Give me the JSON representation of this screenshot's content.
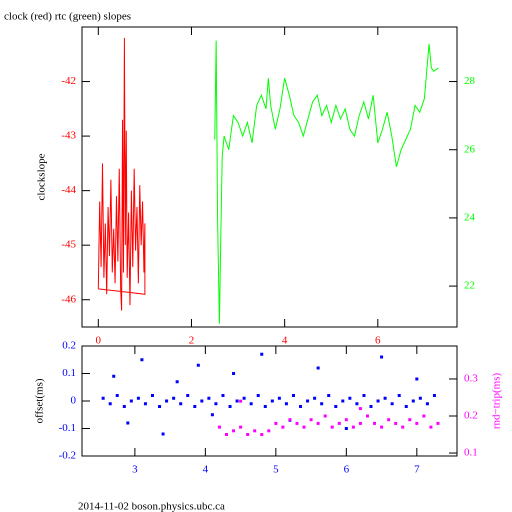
{
  "chart_data": [
    {
      "type": "line",
      "title": "clock (red) rtc (green) slopes",
      "ylabel": "clockslope",
      "xlim": [
        -0.35,
        7.7
      ],
      "xticks": [
        0,
        2,
        4,
        6
      ],
      "ylim": [
        -46.5,
        -41
      ],
      "yticks": [
        -46,
        -45,
        -44,
        -43,
        -42
      ],
      "y2lim": [
        20.8,
        29.6
      ],
      "y2ticks": [
        22,
        24,
        26,
        28
      ],
      "series": [
        {
          "name": "clock",
          "color": "#ff0000",
          "axis": "y",
          "x": [
            0,
            0.03,
            0.06,
            0.09,
            0.12,
            0.15,
            0.18,
            0.21,
            0.24,
            0.27,
            0.3,
            0.33,
            0.36,
            0.39,
            0.42,
            0.45,
            0.48,
            0.5,
            0.52,
            0.54,
            0.56,
            0.58,
            0.6,
            0.62,
            0.65,
            0.68,
            0.71,
            0.74,
            0.77,
            0.8,
            0.83,
            0.86,
            0.89,
            0.92,
            0.95,
            0.98,
            1.0,
            1.0,
            0
          ],
          "values": [
            -45.8,
            -44.2,
            -45.4,
            -43.5,
            -45.6,
            -44.6,
            -45.9,
            -44.3,
            -45.2,
            -43.8,
            -45.5,
            -44.7,
            -45.7,
            -44.1,
            -45.3,
            -43.6,
            -45.8,
            -46.2,
            -42.7,
            -45.5,
            -41.2,
            -45.0,
            -42.9,
            -45.6,
            -44.4,
            -46.1,
            -44.0,
            -45.4,
            -43.6,
            -45.1,
            -44.3,
            -45.7,
            -43.9,
            -45.0,
            -44.2,
            -45.5,
            -44.6,
            -45.9,
            -45.8
          ]
        },
        {
          "name": "rtc",
          "color": "#00ff00",
          "axis": "y2",
          "x": [
            2.5,
            2.53,
            2.56,
            2.6,
            2.63,
            2.66,
            2.7,
            2.8,
            2.9,
            3.0,
            3.1,
            3.2,
            3.3,
            3.4,
            3.5,
            3.6,
            3.65,
            3.7,
            3.8,
            3.9,
            4.0,
            4.1,
            4.2,
            4.3,
            4.4,
            4.5,
            4.6,
            4.7,
            4.8,
            4.9,
            5.0,
            5.1,
            5.2,
            5.3,
            5.4,
            5.5,
            5.6,
            5.7,
            5.8,
            5.9,
            6.0,
            6.1,
            6.2,
            6.3,
            6.4,
            6.5,
            6.6,
            6.7,
            6.8,
            6.9,
            7.0,
            7.1,
            7.15,
            7.2,
            7.3
          ],
          "values": [
            26.3,
            29.2,
            24,
            20.9,
            23.5,
            25.8,
            26.4,
            26.0,
            27.0,
            26.8,
            26.4,
            26.8,
            26.2,
            27.3,
            27.6,
            27.2,
            28.1,
            27.3,
            26.6,
            27.2,
            28.1,
            27.6,
            27.0,
            26.8,
            26.4,
            26.9,
            27.4,
            27.6,
            27.0,
            27.3,
            26.8,
            27.3,
            26.9,
            27.2,
            26.6,
            26.4,
            27.0,
            27.4,
            26.9,
            27.6,
            26.2,
            26.6,
            27.1,
            26.4,
            25.5,
            26.0,
            26.3,
            26.6,
            27.3,
            27.1,
            27.5,
            29.1,
            28.4,
            28.3,
            28.4
          ]
        }
      ]
    },
    {
      "type": "scatter",
      "ylabel": "offset(ms)",
      "y2label": "rnd−trip(ms)",
      "footer": "2014-11-02 boson.physics.ubc.ca",
      "xlim": [
        2.25,
        7.57
      ],
      "xticks": [
        3,
        4,
        5,
        6,
        7
      ],
      "ylim": [
        -0.2,
        0.2
      ],
      "yticks": [
        -0.2,
        -0.1,
        0,
        0.1,
        0.2
      ],
      "y2lim": [
        0.092,
        0.389
      ],
      "y2ticks": [
        0.1,
        0.2,
        0.3
      ],
      "series": [
        {
          "name": "offset",
          "color": "#0000ff",
          "axis": "y",
          "x": [
            2.55,
            2.65,
            2.75,
            2.85,
            2.95,
            3.05,
            3.15,
            3.25,
            3.35,
            3.45,
            3.55,
            3.65,
            3.75,
            3.85,
            3.95,
            4.05,
            4.15,
            4.25,
            4.35,
            4.45,
            4.55,
            4.65,
            4.75,
            4.85,
            4.95,
            5.05,
            5.15,
            5.25,
            5.35,
            5.45,
            5.55,
            5.65,
            5.75,
            5.85,
            5.95,
            6.05,
            6.15,
            6.25,
            6.35,
            6.45,
            6.55,
            6.65,
            6.75,
            6.85,
            6.95,
            7.05,
            7.15,
            7.25,
            2.7,
            2.9,
            3.1,
            3.4,
            3.6,
            3.9,
            4.1,
            4.4,
            4.8,
            5.2,
            5.6,
            6.0,
            6.5,
            7.0
          ],
          "values": [
            0.01,
            -0.01,
            0.02,
            -0.02,
            0,
            0.01,
            -0.01,
            0.02,
            -0.02,
            0,
            0.01,
            -0.01,
            0.02,
            -0.02,
            0,
            0.01,
            -0.01,
            0.02,
            -0.02,
            0,
            0.01,
            -0.01,
            0.02,
            -0.02,
            0,
            0.01,
            -0.01,
            0.02,
            -0.02,
            0,
            0.01,
            -0.01,
            0.02,
            -0.02,
            0,
            0.01,
            -0.01,
            0.02,
            -0.02,
            0,
            0.01,
            -0.01,
            0.02,
            -0.02,
            0,
            0.01,
            -0.01,
            0.02,
            0.09,
            -0.08,
            0.15,
            -0.12,
            0.07,
            0.13,
            -0.05,
            0.1,
            0.17,
            -0.07,
            0.12,
            -0.1,
            0.16,
            0.08
          ]
        },
        {
          "name": "rnd-trip",
          "color": "#ff00ff",
          "axis": "y2",
          "x": [
            4.2,
            4.3,
            4.4,
            4.5,
            4.6,
            4.7,
            4.8,
            4.9,
            5.0,
            5.1,
            5.2,
            5.3,
            5.4,
            5.5,
            5.6,
            5.7,
            5.8,
            5.9,
            6.0,
            6.1,
            6.2,
            6.3,
            6.4,
            6.5,
            6.6,
            6.7,
            6.8,
            6.9,
            7.0,
            7.1,
            7.2,
            7.3,
            4.5,
            6.2
          ],
          "values": [
            0.17,
            0.15,
            0.16,
            0.17,
            0.15,
            0.16,
            0.15,
            0.16,
            0.18,
            0.17,
            0.19,
            0.18,
            0.17,
            0.19,
            0.18,
            0.2,
            0.17,
            0.18,
            0.19,
            0.17,
            0.18,
            0.2,
            0.18,
            0.17,
            0.19,
            0.18,
            0.17,
            0.19,
            0.18,
            0.2,
            0.17,
            0.18,
            0.24,
            0.22
          ]
        }
      ]
    }
  ]
}
